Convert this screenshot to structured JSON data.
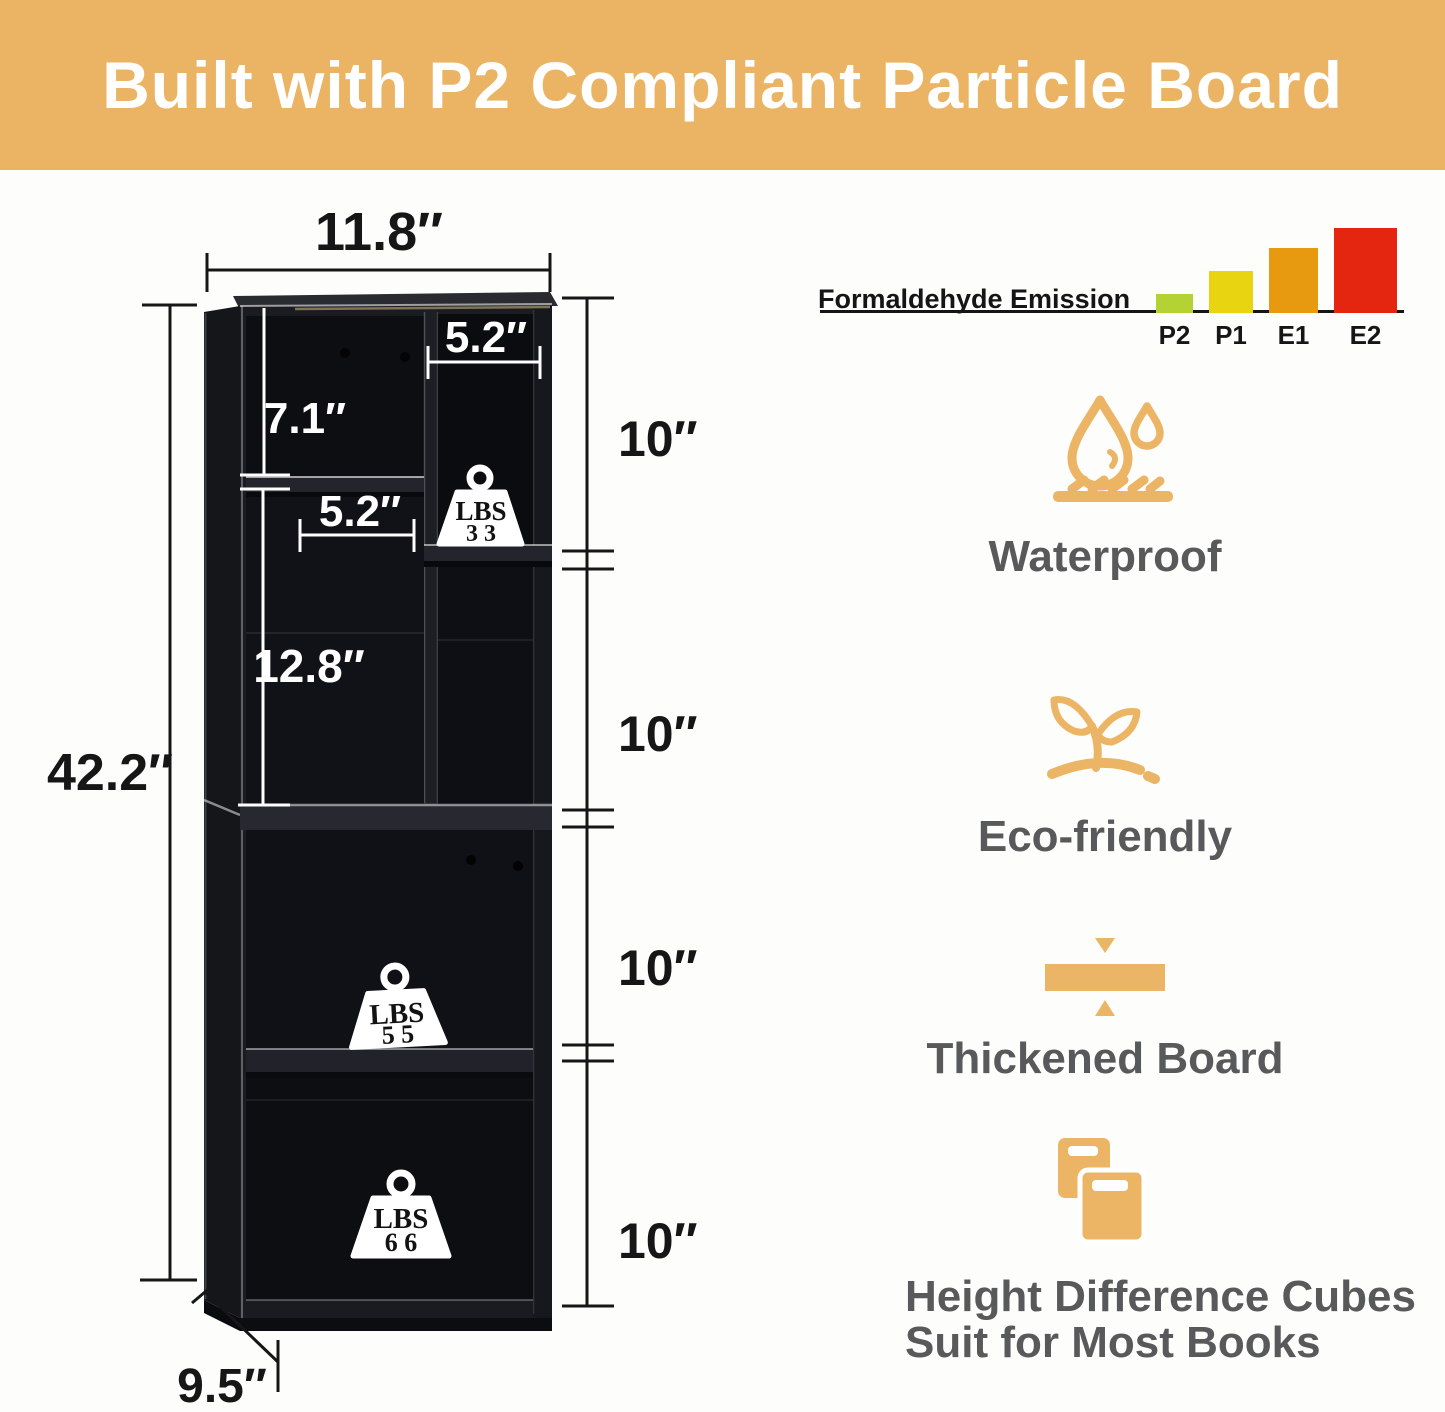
{
  "banner": {
    "title": "Built with P2 Compliant Particle Board",
    "background_color": "#ebb464",
    "text_color": "#ffffff"
  },
  "diagram": {
    "width_label": "11.8″",
    "height_label": "42.2″",
    "depth_label": "9.5″",
    "cube_top_height_label": "7.1″",
    "cube_top_right_width_label": "5.2″",
    "cube_mid_width_label": "5.2″",
    "cube_mid_height_label": "12.8″",
    "section_labels": [
      "10″",
      "10″",
      "10″",
      "10″"
    ],
    "weights": [
      {
        "unit": "LBS",
        "value": "3 3"
      },
      {
        "unit": "LBS",
        "value": "5 5"
      },
      {
        "unit": "LBS",
        "value": "6 6"
      }
    ]
  },
  "chart_data": {
    "type": "bar",
    "title": "Formaldehyde Emission",
    "categories": [
      "P2",
      "P1",
      "E1",
      "E2"
    ],
    "values": [
      19,
      42,
      65,
      85
    ],
    "value_note": "relative bar heights, no numeric axis shown",
    "colors": [
      "#b5d234",
      "#e9d411",
      "#e7990f",
      "#e4250f"
    ],
    "baseline_color": "#151515",
    "legend": false
  },
  "features": [
    {
      "icon": "waterproof-icon",
      "label": "Waterproof"
    },
    {
      "icon": "eco-friendly-icon",
      "label": "Eco-friendly"
    },
    {
      "icon": "thickened-board-icon",
      "label": "Thickened Board"
    },
    {
      "icon": "books-icon",
      "label": "Height Difference Cubes",
      "label2": "Suit for Most Books"
    }
  ],
  "accent_color": "#ecb565",
  "label_color": "#58595b"
}
